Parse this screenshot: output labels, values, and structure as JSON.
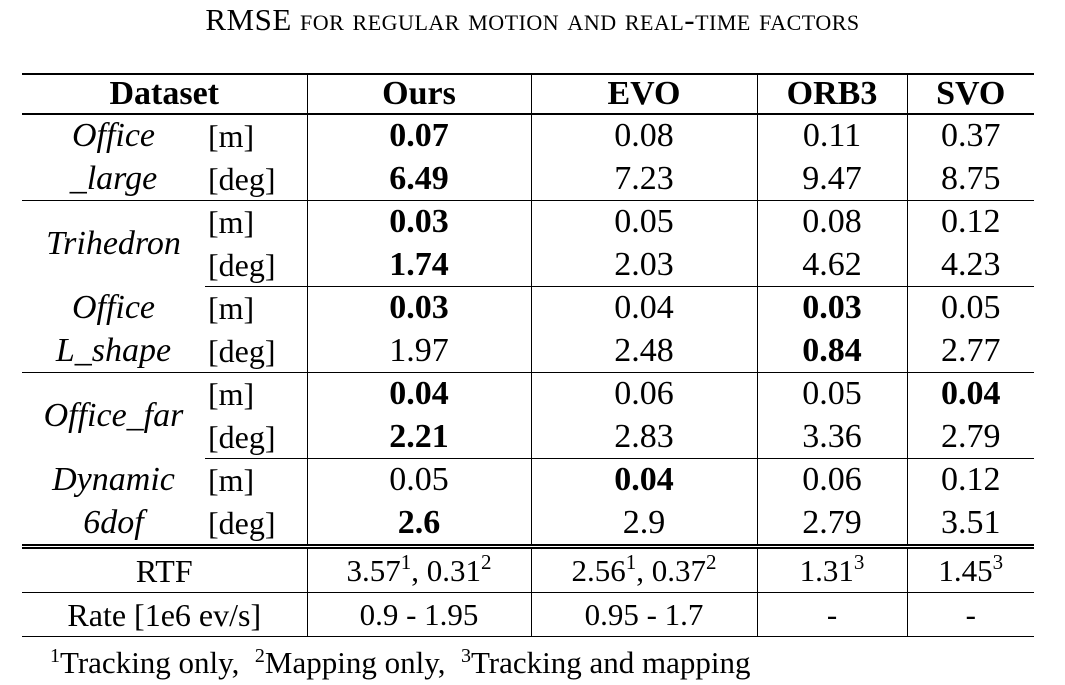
{
  "caption": "RMSE for regular motion and real-time factors",
  "headers": {
    "dataset": "Dataset",
    "ours": "Ours",
    "evo": "EVO",
    "orb3": "ORB3",
    "svo": "SVO"
  },
  "units": {
    "m": "[m]",
    "deg": "[deg]"
  },
  "groups": [
    {
      "line1": "Office",
      "line2": "_large",
      "m": [
        "0.07",
        "0.08",
        "0.11",
        "0.37"
      ],
      "deg": [
        "6.49",
        "7.23",
        "9.47",
        "8.75"
      ]
    },
    {
      "name": "Trihedron",
      "m": [
        "0.03",
        "0.05",
        "0.08",
        "0.12"
      ],
      "deg": [
        "1.74",
        "2.03",
        "4.62",
        "4.23"
      ]
    },
    {
      "line1": "Office",
      "line2": "L_shape",
      "m": [
        "0.03",
        "0.04",
        "0.03",
        "0.05"
      ],
      "deg": [
        "1.97",
        "2.48",
        "0.84",
        "2.77"
      ]
    },
    {
      "name": "Office_far",
      "m": [
        "0.04",
        "0.06",
        "0.05",
        "0.04"
      ],
      "deg": [
        "2.21",
        "2.83",
        "3.36",
        "2.79"
      ]
    },
    {
      "line1": "Dynamic",
      "line2": "6dof",
      "m": [
        "0.05",
        "0.04",
        "0.06",
        "0.12"
      ],
      "deg": [
        "2.6",
        "2.9",
        "2.79",
        "3.51"
      ]
    }
  ],
  "rtf": {
    "label": "RTF",
    "ours": [
      "3.57",
      "1",
      "0.31",
      "2"
    ],
    "evo": [
      "2.56",
      "1",
      "0.37",
      "2"
    ],
    "orb3": [
      "1.31",
      "3"
    ],
    "svo": [
      "1.45",
      "3"
    ]
  },
  "rate": {
    "label": "Rate [1e6 ev/s]",
    "ours": "0.9 - 1.95",
    "evo": "0.95 - 1.7",
    "orb3": "-",
    "svo": "-"
  },
  "notes": [
    {
      "mark": "1",
      "text": "Tracking only,"
    },
    {
      "mark": "2",
      "text": "Mapping only,"
    },
    {
      "mark": "3",
      "text": "Tracking and mapping"
    }
  ]
}
